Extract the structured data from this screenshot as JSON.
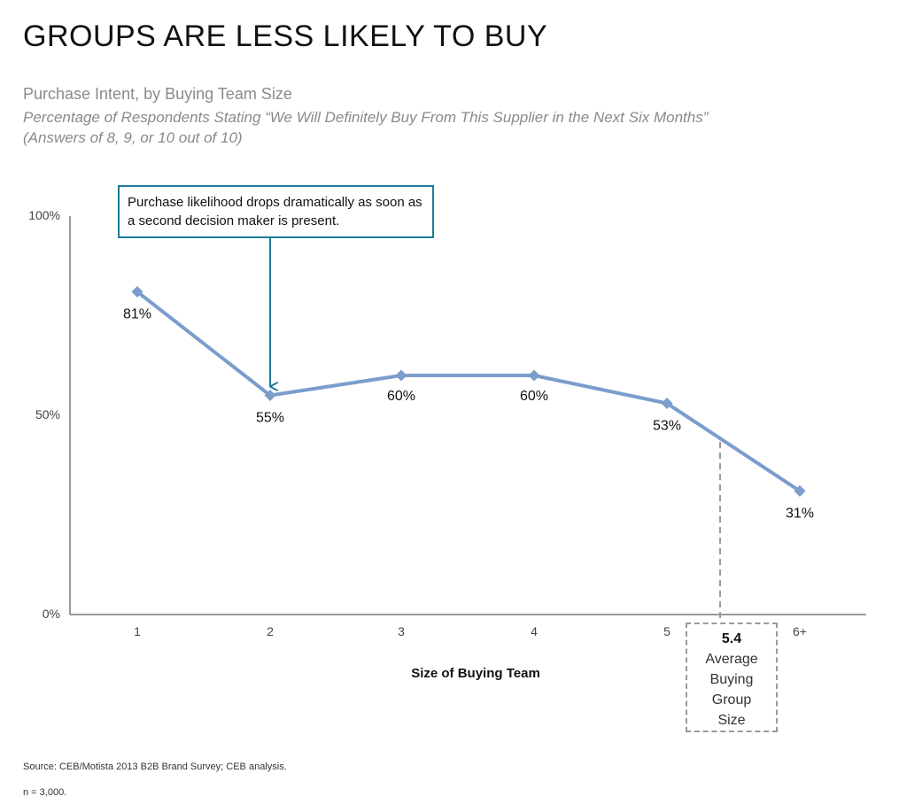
{
  "header": {
    "title": "GROUPS ARE LESS LIKELY TO BUY",
    "subtitle": "Purchase Intent, by Buying Team Size",
    "description_line1": "Percentage of Respondents Stating “We Will Definitely Buy From This Supplier in the Next Six Months”",
    "description_line2": "(Answers of 8, 9, or 10 out of 10)"
  },
  "chart_data": {
    "type": "line",
    "categories": [
      "1",
      "2",
      "3",
      "4",
      "5",
      "6+"
    ],
    "values": [
      81,
      55,
      60,
      60,
      53,
      31
    ],
    "data_labels": [
      "81%",
      "55%",
      "60%",
      "60%",
      "53%",
      "31%"
    ],
    "xlabel": "Size of Buying Team",
    "ylabel": "",
    "ylim": [
      0,
      100
    ],
    "y_ticks": [
      {
        "value": 0,
        "label": "0%"
      },
      {
        "value": 50,
        "label": "50%"
      },
      {
        "value": 100,
        "label": "100%"
      }
    ],
    "grid": false,
    "line_color": "#7b9dcc",
    "annotations": [
      {
        "text": "Purchase likelihood drops dramatically as soon as a second decision maker is present.",
        "points_to_category": "2",
        "border_color": "#1f7a99"
      }
    ],
    "reference_marker": {
      "x": 5.4,
      "value_label": "5.4",
      "text": "Average Buying Group Size",
      "style": "dashed"
    }
  },
  "footer": {
    "source": "Source: CEB/Motista 2013 B2B Brand Survey; CEB analysis.",
    "n_note": "n = 3,000."
  }
}
